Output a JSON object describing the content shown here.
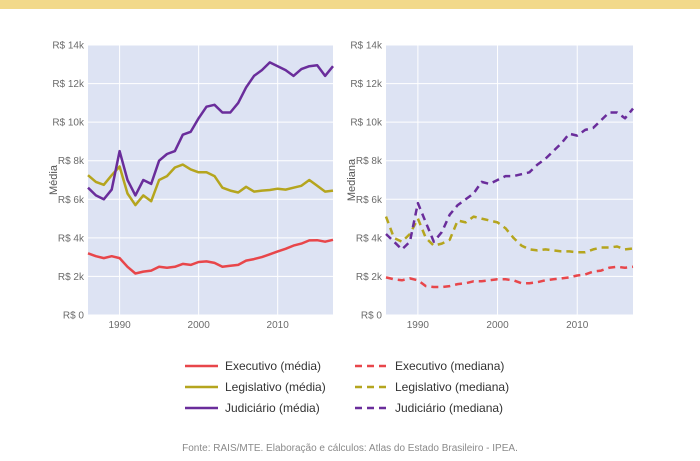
{
  "colors": {
    "top_bar": "#f2d98a",
    "plot_bg": "#dde3f3",
    "grid": "#ffffff",
    "executivo": "#e8464a",
    "legislativo": "#b5a51e",
    "judiciario": "#6a2d9b"
  },
  "source": "Fonte: RAIS/MTE. Elaboração e cálculos: Atlas do Estado Brasileiro - IPEA.",
  "chart_data": [
    {
      "type": "line",
      "ylabel": "Média",
      "xlabel": "",
      "xlim": [
        1986,
        2017
      ],
      "ylim": [
        0,
        14000
      ],
      "x_ticks": [
        1990,
        2000,
        2010
      ],
      "x_tick_labels": [
        "1990",
        "2000",
        "2010"
      ],
      "y_ticks": [
        0,
        2000,
        4000,
        6000,
        8000,
        10000,
        12000,
        14000
      ],
      "y_tick_labels": [
        "R$ 0",
        "R$ 2k",
        "R$ 4k",
        "R$ 6k",
        "R$ 8k",
        "R$ 10k",
        "R$ 12k",
        "R$ 14k"
      ],
      "x": [
        1986,
        1987,
        1988,
        1989,
        1990,
        1991,
        1992,
        1993,
        1994,
        1995,
        1996,
        1997,
        1998,
        1999,
        2000,
        2001,
        2002,
        2003,
        2004,
        2005,
        2006,
        2007,
        2008,
        2009,
        2010,
        2011,
        2012,
        2013,
        2014,
        2015,
        2016,
        2017
      ],
      "series": [
        {
          "name": "Executivo (média)",
          "color_key": "executivo",
          "dash": false,
          "values": [
            3200,
            3050,
            2950,
            3050,
            2950,
            2500,
            2150,
            2250,
            2300,
            2500,
            2450,
            2500,
            2650,
            2600,
            2750,
            2780,
            2700,
            2500,
            2550,
            2600,
            2820,
            2900,
            3000,
            3150,
            3300,
            3430,
            3600,
            3700,
            3870,
            3880,
            3800,
            3900
          ]
        },
        {
          "name": "Legislativo (média)",
          "color_key": "legislativo",
          "dash": false,
          "values": [
            7250,
            6900,
            6750,
            7250,
            7700,
            6300,
            5700,
            6200,
            5900,
            7000,
            7200,
            7650,
            7800,
            7550,
            7400,
            7400,
            7200,
            6600,
            6450,
            6350,
            6650,
            6400,
            6450,
            6480,
            6550,
            6500,
            6600,
            6700,
            7000,
            6700,
            6400,
            6450
          ]
        },
        {
          "name": "Judiciário (média)",
          "color_key": "judiciario",
          "dash": false,
          "values": [
            6600,
            6200,
            6000,
            6500,
            8500,
            7000,
            6200,
            7000,
            6800,
            8000,
            8350,
            8500,
            9350,
            9500,
            10200,
            10800,
            10900,
            10500,
            10500,
            11000,
            11800,
            12400,
            12700,
            13100,
            12900,
            12700,
            12400,
            12750,
            12900,
            12950,
            12400,
            12900
          ]
        }
      ]
    },
    {
      "type": "line",
      "ylabel": "Mediana",
      "xlabel": "",
      "xlim": [
        1986,
        2017
      ],
      "ylim": [
        0,
        14000
      ],
      "x_ticks": [
        1990,
        2000,
        2010
      ],
      "x_tick_labels": [
        "1990",
        "2000",
        "2010"
      ],
      "y_ticks": [
        0,
        2000,
        4000,
        6000,
        8000,
        10000,
        12000,
        14000
      ],
      "y_tick_labels": [
        "R$ 0",
        "R$ 2k",
        "R$ 4k",
        "R$ 6k",
        "R$ 8k",
        "R$ 10k",
        "R$ 12k",
        "R$ 14k"
      ],
      "x": [
        1986,
        1987,
        1988,
        1989,
        1990,
        1991,
        1992,
        1993,
        1994,
        1995,
        1996,
        1997,
        1998,
        1999,
        2000,
        2001,
        2002,
        2003,
        2004,
        2005,
        2006,
        2007,
        2008,
        2009,
        2010,
        2011,
        2012,
        2013,
        2014,
        2015,
        2016,
        2017
      ],
      "series": [
        {
          "name": "Executivo (mediana)",
          "color_key": "executivo",
          "dash": true,
          "values": [
            1950,
            1850,
            1800,
            1900,
            1800,
            1500,
            1450,
            1450,
            1500,
            1600,
            1650,
            1750,
            1750,
            1800,
            1850,
            1850,
            1800,
            1650,
            1650,
            1700,
            1800,
            1850,
            1900,
            1950,
            2050,
            2100,
            2250,
            2300,
            2450,
            2500,
            2450,
            2500
          ]
        },
        {
          "name": "Legislativo (mediana)",
          "color_key": "legislativo",
          "dash": true,
          "values": [
            5100,
            4000,
            3800,
            4200,
            5000,
            4000,
            3600,
            3700,
            3900,
            4900,
            4800,
            5100,
            5000,
            4900,
            4800,
            4500,
            4000,
            3600,
            3400,
            3350,
            3400,
            3350,
            3300,
            3300,
            3250,
            3250,
            3400,
            3500,
            3500,
            3550,
            3400,
            3450
          ]
        },
        {
          "name": "Judiciário (mediana)",
          "color_key": "judiciario",
          "dash": true,
          "values": [
            4200,
            3800,
            3400,
            3800,
            5800,
            4800,
            3800,
            4300,
            5200,
            5700,
            6000,
            6300,
            6900,
            6800,
            7000,
            7200,
            7200,
            7300,
            7400,
            7800,
            8100,
            8500,
            8900,
            9400,
            9300,
            9600,
            9700,
            10100,
            10500,
            10500,
            10200,
            10700
          ]
        }
      ]
    }
  ],
  "legend": {
    "left": [
      {
        "label": "Executivo (média)",
        "color_key": "executivo",
        "dash": false
      },
      {
        "label": "Legislativo (média)",
        "color_key": "legislativo",
        "dash": false
      },
      {
        "label": "Judiciário (média)",
        "color_key": "judiciario",
        "dash": false
      }
    ],
    "right": [
      {
        "label": "Executivo (mediana)",
        "color_key": "executivo",
        "dash": true
      },
      {
        "label": "Legislativo (mediana)",
        "color_key": "legislativo",
        "dash": true
      },
      {
        "label": "Judiciário (mediana)",
        "color_key": "judiciario",
        "dash": true
      }
    ]
  }
}
